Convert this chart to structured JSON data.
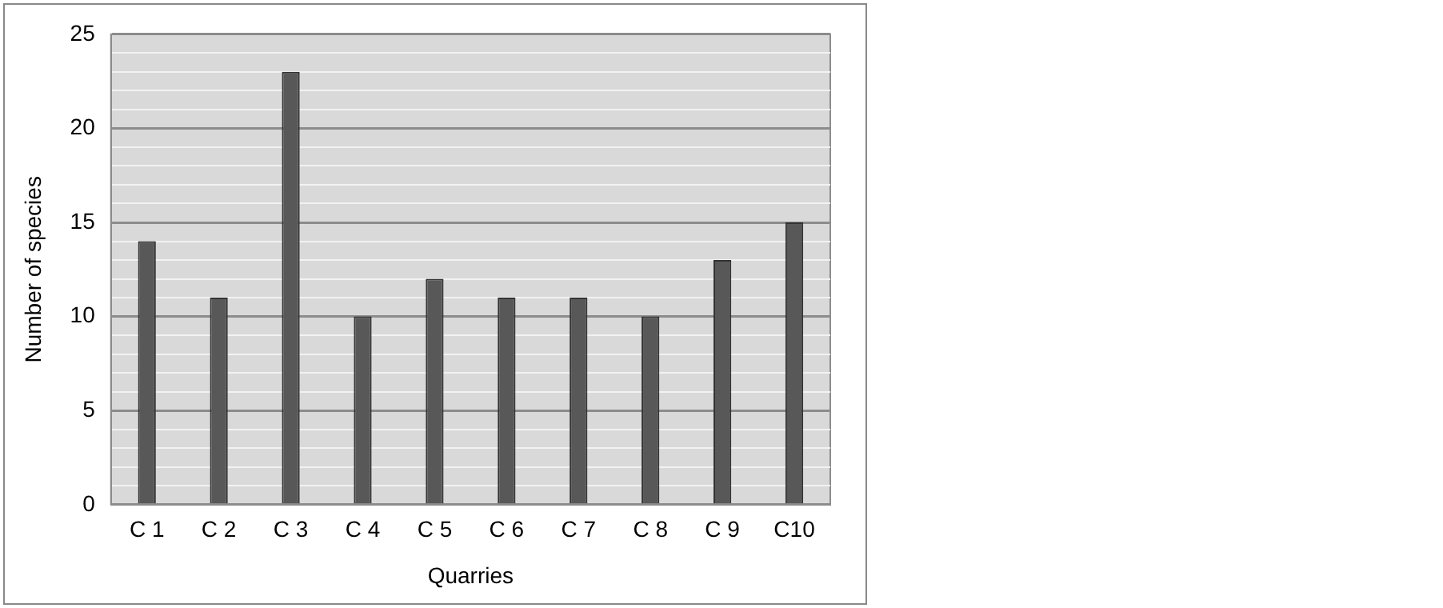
{
  "chart_data": {
    "type": "bar",
    "xlabel": "Quarries",
    "ylabel": "Number of species",
    "categories": [
      "C 1",
      "C 2",
      "C 3",
      "C 4",
      "C 5",
      "C 6",
      "C 7",
      "C 8",
      "C 9",
      "C10"
    ],
    "values": [
      14,
      11,
      23,
      10,
      12,
      11,
      11,
      10,
      13,
      15
    ],
    "color": "#585858",
    "ylim": [
      0,
      25
    ],
    "yticks": [
      0,
      {
        "value": 1,
        "label": null
      },
      {
        "value": 2,
        "label": null
      },
      {
        "value": 3,
        "label": null
      },
      {
        "value": 4,
        "label": null
      },
      5,
      {
        "value": 6,
        "label": null
      },
      {
        "value": 7,
        "label": null
      },
      {
        "value": 8,
        "label": null
      },
      {
        "value": 9,
        "label": null
      },
      10,
      {
        "value": 11,
        "label": null
      },
      {
        "value": 12,
        "label": null
      },
      {
        "value": 13,
        "label": null
      },
      {
        "value": 14,
        "label": null
      },
      15,
      {
        "value": 16,
        "label": null
      },
      {
        "value": 17,
        "label": null
      },
      {
        "value": 18,
        "label": null
      },
      {
        "value": 19,
        "label": null
      },
      20,
      {
        "value": 21,
        "label": null
      },
      {
        "value": 22,
        "label": null
      },
      {
        "value": 23,
        "label": null
      },
      {
        "value": 24,
        "label": null
      },
      25
    ],
    "grid": "y"
  }
}
